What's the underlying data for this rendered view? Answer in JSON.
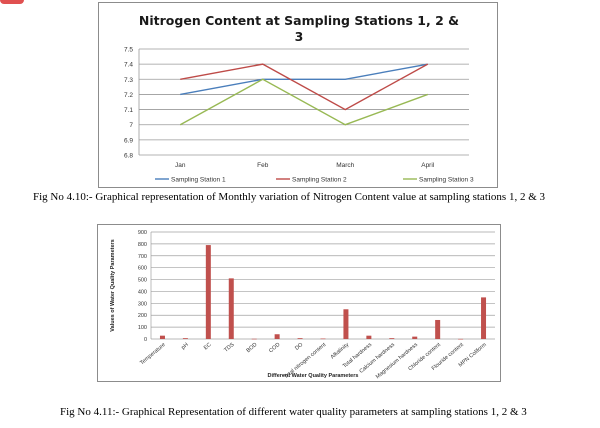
{
  "chart_data": [
    {
      "type": "line",
      "title": "Nitrogen Content at Sampling Stations 1, 2 &",
      "title_line2": "3",
      "categories": [
        "Jan",
        "Feb",
        "March",
        "April"
      ],
      "yticks": [
        "7.5",
        "7.4",
        "7.3",
        "7.2",
        "7.1",
        "7",
        "6.9",
        "6.8"
      ],
      "ylim": [
        6.8,
        7.5
      ],
      "grid": true,
      "legend_position": "bottom",
      "series": [
        {
          "name": "Sampling Station 1",
          "color": "#4a7ebb",
          "values": [
            7.2,
            7.3,
            7.3,
            7.4
          ]
        },
        {
          "name": "Sampling Station 2",
          "color": "#be4b48",
          "values": [
            7.3,
            7.4,
            7.1,
            7.4
          ]
        },
        {
          "name": "Sampling Station 3",
          "color": "#98b954",
          "values": [
            7.0,
            7.3,
            7.0,
            7.2
          ]
        }
      ]
    },
    {
      "type": "bar",
      "xlabel": "Different Water Quality Parameters",
      "ylabel": "Values of  Water Quality Parameters",
      "ylim": [
        0,
        900
      ],
      "yticks": [
        "900",
        "800",
        "700",
        "600",
        "500",
        "400",
        "300",
        "200",
        "100",
        "0"
      ],
      "grid": true,
      "bar_color": "#c0504d",
      "categories": [
        "Temperature",
        "pH",
        "EC",
        "TDS",
        "BOD",
        "COD",
        "DO",
        "Total nitrogen content",
        "Alkalinity",
        "Total hardness",
        "Calcium hardness",
        "Magnesium hardness",
        "Chloride content",
        "Flouride content",
        "MPN Coliform"
      ],
      "values": [
        28,
        7,
        790,
        510,
        2,
        40,
        7,
        4,
        250,
        28,
        7,
        20,
        160,
        1,
        350
      ]
    }
  ],
  "captions": {
    "fig1": "Fig No 4.10:- Graphical representation of Monthly variation of Nitrogen Content value at sampling stations 1, 2 & 3",
    "fig2": "Fig No 4.11:- Graphical Representation of different water quality parameters at sampling stations 1, 2 & 3"
  }
}
